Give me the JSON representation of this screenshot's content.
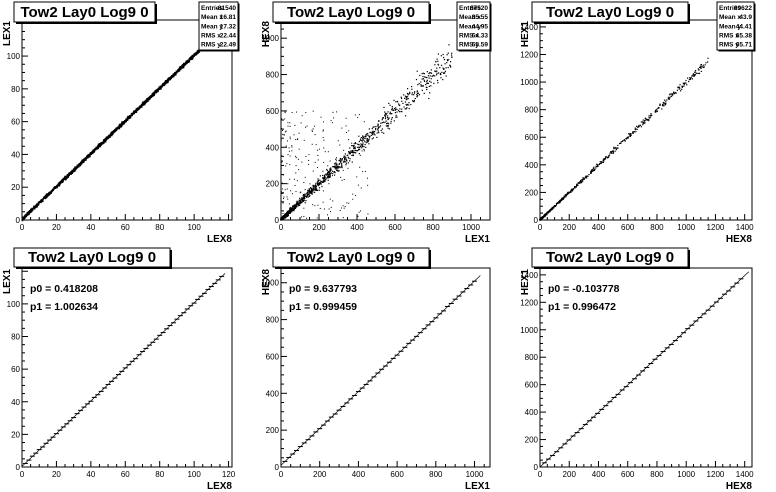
{
  "colors": {
    "background": "#ffffff",
    "frame": "#000000",
    "markers": "#000000"
  },
  "chart_data": [
    {
      "type": "scatter",
      "title": "Tow2 Lay0 Log9 0",
      "xlabel": "LEX8",
      "ylabel": "LEX1",
      "xlim": [
        0,
        122
      ],
      "ylim": [
        0,
        122
      ],
      "xticks": [
        "0",
        "20",
        "40",
        "60",
        "80",
        "100"
      ],
      "yticks": [
        "0",
        "20",
        "40",
        "60",
        "80",
        "100"
      ],
      "stats": [
        [
          "Entries",
          "81540"
        ],
        [
          "Mean x",
          "16.81"
        ],
        [
          "Mean y",
          "17.32"
        ],
        [
          "RMS x",
          "22.44"
        ],
        [
          "RMS y",
          "22.49"
        ]
      ],
      "pattern": {
        "kind": "dense_line",
        "x_max": 112,
        "slope": 1.0,
        "intercept": 0.4
      }
    },
    {
      "type": "scatter",
      "title": "Tow2 Lay0 Log9 0",
      "xlabel": "LEX1",
      "ylabel": "HEX8",
      "xlim": [
        0,
        1100
      ],
      "ylim": [
        0,
        1100
      ],
      "xticks": [
        "0",
        "200",
        "400",
        "600",
        "800",
        "1000"
      ],
      "yticks": [
        "0",
        "200",
        "400",
        "600",
        "800",
        "1000"
      ],
      "stats": [
        [
          "Entries",
          "87520"
        ],
        [
          "Mean x",
          "35.55"
        ],
        [
          "Mean y",
          "44.95"
        ],
        [
          "RMS x",
          "64.33"
        ],
        [
          "RMS y",
          "65.59"
        ]
      ],
      "pattern": {
        "kind": "diffuse",
        "x_max": 900,
        "slope": 1.0,
        "intercept": 0
      }
    },
    {
      "type": "scatter",
      "title": "Tow2 Lay0 Log9 0",
      "xlabel": "HEX8",
      "ylabel": "HEX1",
      "xlim": [
        0,
        1450
      ],
      "ylim": [
        0,
        1450
      ],
      "xticks": [
        "0",
        "200",
        "400",
        "600",
        "800",
        "1000",
        "1200",
        "1400"
      ],
      "yticks": [
        "0",
        "200",
        "400",
        "600",
        "800",
        "1000",
        "1200",
        "1400"
      ],
      "stats": [
        [
          "Entries",
          "89622"
        ],
        [
          "Mean x",
          "43.9"
        ],
        [
          "Mean y",
          "44.41"
        ],
        [
          "RMS x",
          "65.38"
        ],
        [
          "RMS y",
          "65.71"
        ]
      ],
      "pattern": {
        "kind": "thin_line",
        "x_max": 1150,
        "slope": 1.0,
        "intercept": 0
      }
    },
    {
      "type": "scatter",
      "title": "Tow2 Lay0 Log9 0",
      "xlabel": "LEX8",
      "ylabel": "LEX1",
      "xlim": [
        0,
        122
      ],
      "ylim": [
        0,
        122
      ],
      "xticks": [
        "0",
        "20",
        "40",
        "60",
        "80",
        "100",
        "120"
      ],
      "yticks": [
        "0",
        "20",
        "40",
        "60",
        "80",
        "100"
      ],
      "fit": {
        "p0": "p0 = 0.418208",
        "p1": "p1 = 1.002634",
        "p0_value": 0.418208,
        "p1_value": 1.002634
      },
      "points": {
        "x_start": 2,
        "x_end": 116,
        "step": 2
      }
    },
    {
      "type": "scatter",
      "title": "Tow2 Lay0 Log9 0",
      "xlabel": "LEX1",
      "ylabel": "HEX8",
      "xlim": [
        0,
        1080
      ],
      "ylim": [
        0,
        1080
      ],
      "xticks": [
        "0",
        "200",
        "400",
        "600",
        "800",
        "1000"
      ],
      "yticks": [
        "0",
        "200",
        "400",
        "600",
        "800",
        "1000"
      ],
      "fit": {
        "p0": "p0 = 9.637793",
        "p1": "p1 = 0.999459",
        "p0_value": 9.637793,
        "p1_value": 0.999459
      },
      "points": {
        "x_start": 20,
        "x_end": 1010,
        "step": 20
      }
    },
    {
      "type": "scatter",
      "title": "Tow2 Lay0 Log9 0",
      "xlabel": "HEX8",
      "ylabel": "HEX1",
      "xlim": [
        0,
        1450
      ],
      "ylim": [
        0,
        1450
      ],
      "xticks": [
        "0",
        "200",
        "400",
        "600",
        "800",
        "1000",
        "1200",
        "1400"
      ],
      "yticks": [
        "0",
        "200",
        "400",
        "600",
        "800",
        "1000",
        "1200",
        "1400"
      ],
      "fit": {
        "p0": "p0 = -0.103778",
        "p1": "p1 = 0.996472",
        "p0_value": -0.103778,
        "p1_value": 0.996472
      },
      "points": {
        "x_start": 30,
        "x_end": 1400,
        "step": 28
      }
    }
  ]
}
